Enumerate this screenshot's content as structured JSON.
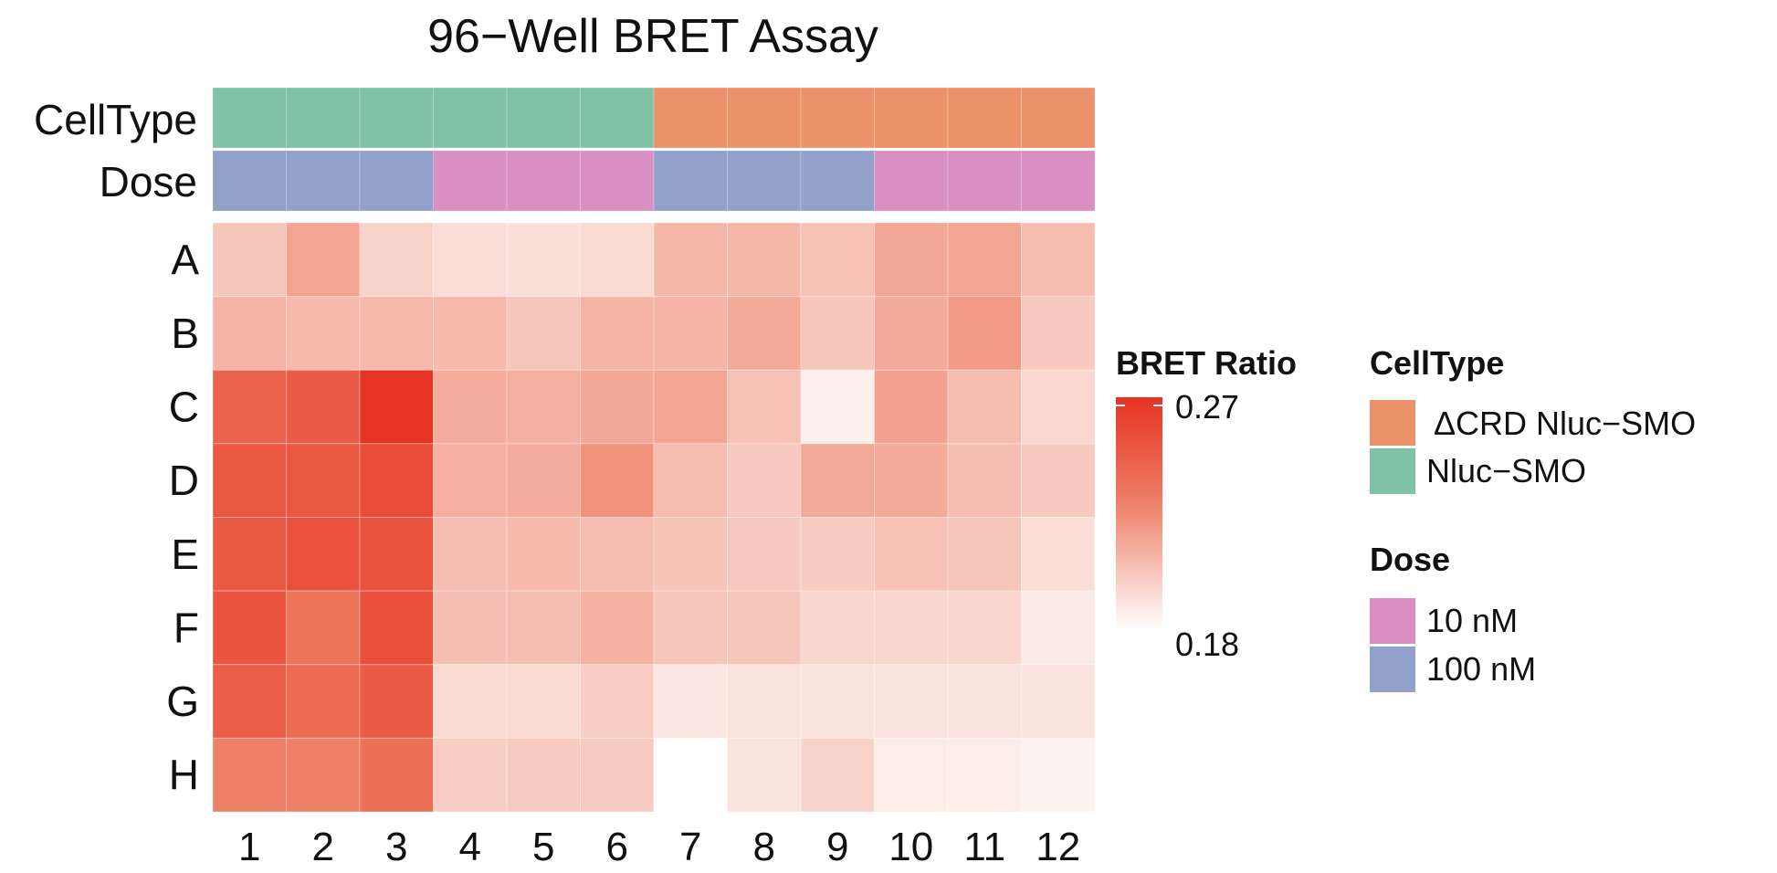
{
  "chart_data": {
    "type": "heatmap",
    "title": "96−Well BRET Assay",
    "rows": [
      "A",
      "B",
      "C",
      "D",
      "E",
      "F",
      "G",
      "H"
    ],
    "columns": [
      "1",
      "2",
      "3",
      "4",
      "5",
      "6",
      "7",
      "8",
      "9",
      "10",
      "11",
      "12"
    ],
    "values": [
      [
        0.202,
        0.215,
        0.197,
        0.193,
        0.192,
        0.194,
        0.208,
        0.208,
        0.204,
        0.214,
        0.215,
        0.206
      ],
      [
        0.209,
        0.207,
        0.207,
        0.207,
        0.202,
        0.209,
        0.209,
        0.213,
        0.202,
        0.213,
        0.219,
        0.201
      ],
      [
        0.245,
        0.248,
        0.269,
        0.212,
        0.211,
        0.214,
        0.215,
        0.204,
        0.186,
        0.216,
        0.206,
        0.195
      ],
      [
        0.25,
        0.25,
        0.256,
        0.211,
        0.212,
        0.222,
        0.206,
        0.201,
        0.213,
        0.213,
        0.205,
        0.201
      ],
      [
        0.249,
        0.254,
        0.253,
        0.205,
        0.207,
        0.206,
        0.203,
        0.201,
        0.2,
        0.204,
        0.202,
        0.193
      ],
      [
        0.252,
        0.236,
        0.255,
        0.205,
        0.205,
        0.21,
        0.202,
        0.202,
        0.196,
        0.196,
        0.196,
        0.188
      ],
      [
        0.247,
        0.24,
        0.248,
        0.194,
        0.194,
        0.199,
        0.189,
        0.191,
        0.191,
        0.191,
        0.191,
        0.191
      ],
      [
        0.229,
        0.229,
        0.238,
        0.199,
        0.2,
        0.2,
        0.18,
        0.191,
        0.197,
        0.187,
        0.187,
        0.185
      ]
    ],
    "color_scale": {
      "title": "BRET Ratio",
      "min": 0.18,
      "max": 0.27,
      "low_color": "#ffffff",
      "mid_color": "#ee7f66",
      "high_color": "#e63222",
      "tick_labels": [
        "0.27",
        "0.18"
      ]
    },
    "column_annotations": [
      {
        "name": "CellType",
        "values": [
          "Nluc−SMO",
          "Nluc−SMO",
          "Nluc−SMO",
          "Nluc−SMO",
          "Nluc−SMO",
          "Nluc−SMO",
          "ΔCRD Nluc−SMO",
          "ΔCRD Nluc−SMO",
          "ΔCRD Nluc−SMO",
          "ΔCRD Nluc−SMO",
          "ΔCRD Nluc−SMO",
          "ΔCRD Nluc−SMO"
        ]
      },
      {
        "name": "Dose",
        "values": [
          "100 nM",
          "100 nM",
          "100 nM",
          "10 nM",
          "10 nM",
          "10 nM",
          "100 nM",
          "100 nM",
          "100 nM",
          "10 nM",
          "10 nM",
          "10 nM"
        ]
      }
    ],
    "legends": [
      {
        "title": "CellType",
        "entries": [
          {
            "label": "ΔCRD Nluc−SMO",
            "color": "#ec926a"
          },
          {
            "label": "Nluc−SMO",
            "color": "#80c2a7"
          }
        ]
      },
      {
        "title": "Dose",
        "entries": [
          {
            "label": "10 nM",
            "color": "#d98fc4"
          },
          {
            "label": "100 nM",
            "color": "#91a1c9"
          }
        ]
      }
    ],
    "legend_position": "right"
  }
}
